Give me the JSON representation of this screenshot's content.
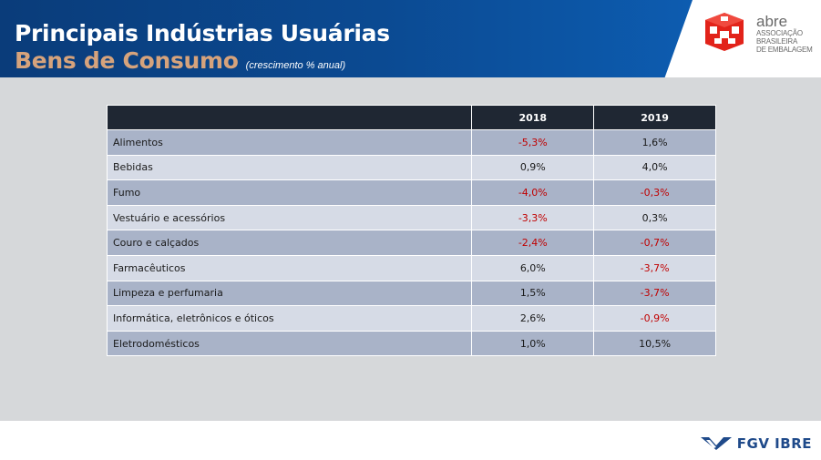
{
  "header": {
    "title": "Principais Indústrias Usuárias",
    "subtitle": "Bens de Consumo",
    "note": "(crescimento % anual)"
  },
  "logo": {
    "name": "abre",
    "line1": "ASSOCIAÇÃO",
    "line2": "BRASILEIRA",
    "line3": "DE EMBALAGEM",
    "icon": "abre-cube-logo-icon",
    "color": "#e2231a"
  },
  "table": {
    "headers": [
      "",
      "2018",
      "2019"
    ],
    "rows": [
      {
        "label": "Alimentos",
        "y2018": "-5,3%",
        "y2019": "1,6%"
      },
      {
        "label": "Bebidas",
        "y2018": "0,9%",
        "y2019": "4,0%"
      },
      {
        "label": "Fumo",
        "y2018": "-4,0%",
        "y2019": "-0,3%"
      },
      {
        "label": "Vestuário e acessórios",
        "y2018": "-3,3%",
        "y2019": "0,3%"
      },
      {
        "label": "Couro e calçados",
        "y2018": "-2,4%",
        "y2019": "-0,7%"
      },
      {
        "label": "Farmacêuticos",
        "y2018": "6,0%",
        "y2019": "-3,7%"
      },
      {
        "label": "Limpeza e perfumaria",
        "y2018": "1,5%",
        "y2019": "-3,7%"
      },
      {
        "label": "Informática, eletrônicos e óticos",
        "y2018": "2,6%",
        "y2019": "-0,9%"
      },
      {
        "label": "Eletrodomésticos",
        "y2018": "1,0%",
        "y2019": "10,5%"
      }
    ],
    "negative_color": "#c00000"
  },
  "footer": {
    "brand": "FGV IBRE",
    "icon": "fgv-chevron-logo-icon"
  }
}
